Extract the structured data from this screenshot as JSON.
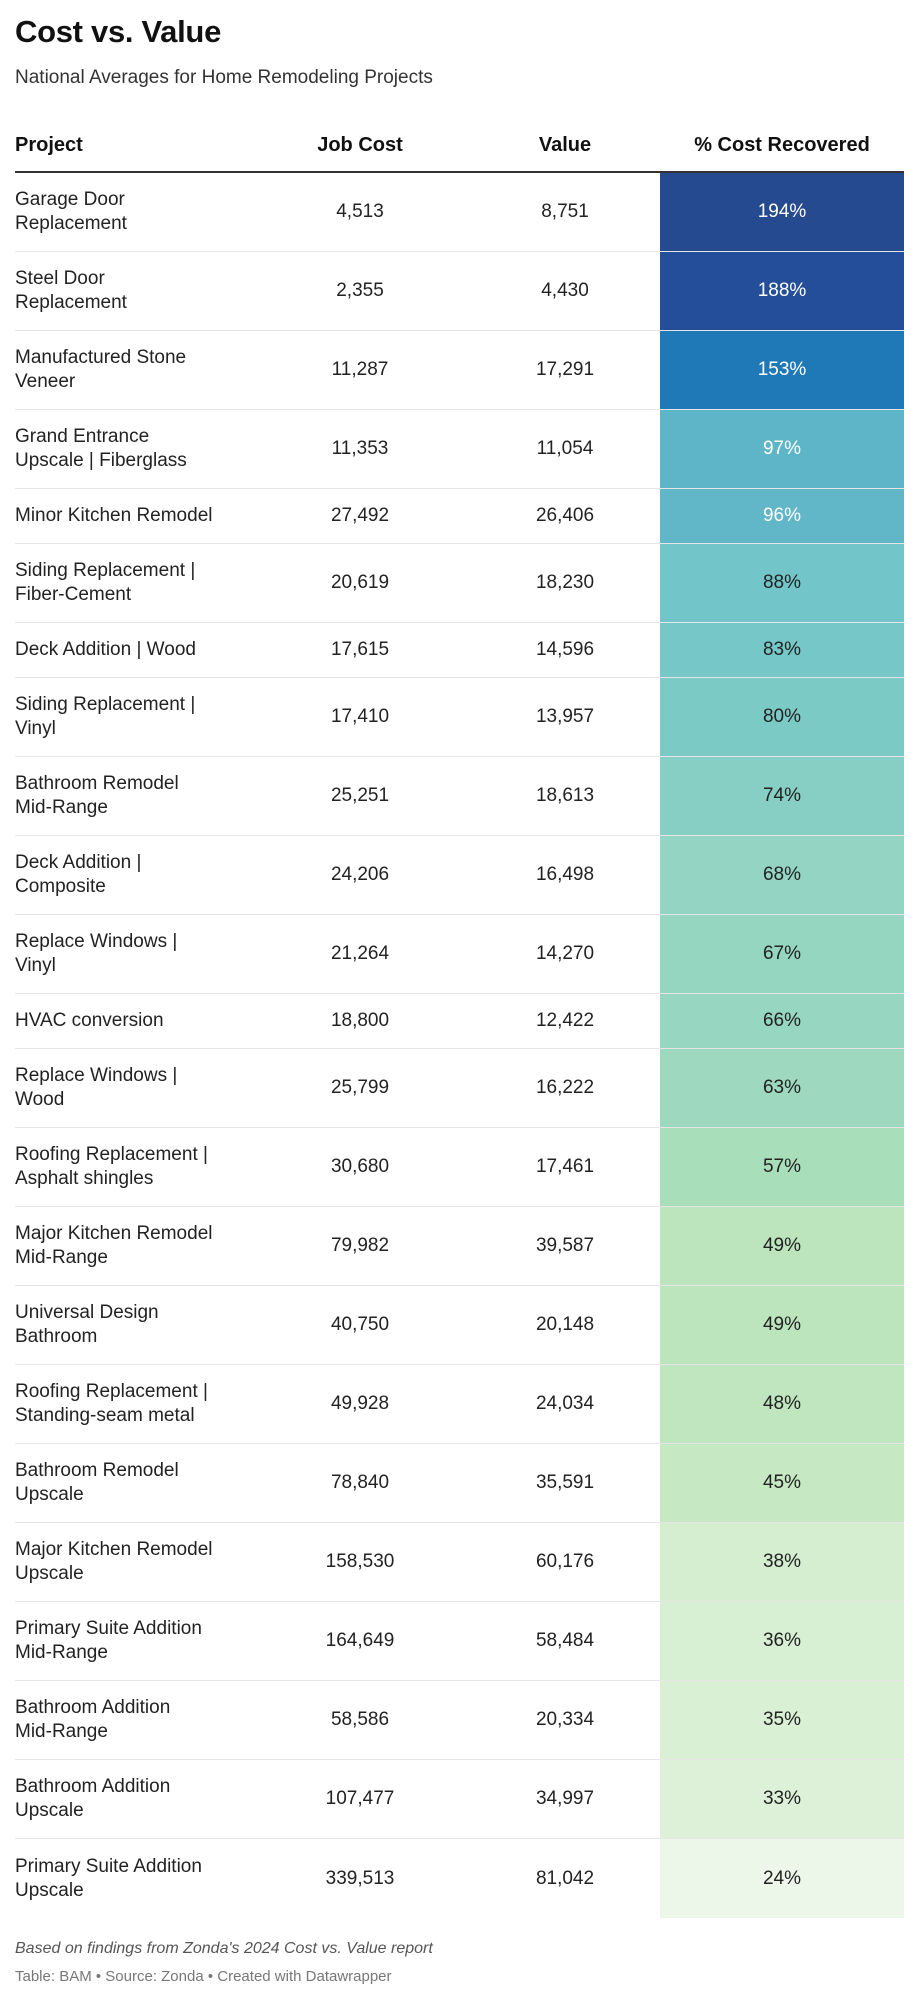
{
  "title": "Cost vs. Value",
  "subtitle": "National Averages for Home Remodeling Projects",
  "columns": {
    "project": "Project",
    "job_cost": "Job Cost",
    "value": "Value",
    "pct": "% Cost Recovered"
  },
  "footer": {
    "note": "Based on findings from Zonda's 2024 Cost vs. Value report",
    "credit": "Table: BAM • Source: Zonda • Created with Datawrapper"
  },
  "chart_data": {
    "type": "table",
    "title": "Cost vs. Value",
    "subtitle": "National Averages for Home Remodeling Projects",
    "columns": [
      "Project",
      "Job Cost",
      "Value",
      "% Cost Recovered"
    ],
    "rows": [
      {
        "project": "Garage Door\nReplacement",
        "job_cost": "4,513",
        "value": "8,751",
        "pct": "194%",
        "pct_num": 194,
        "color": "#264a8f",
        "text_color": "#ffffff"
      },
      {
        "project": "Steel Door\nReplacement",
        "job_cost": "2,355",
        "value": "4,430",
        "pct": "188%",
        "pct_num": 188,
        "color": "#244e99",
        "text_color": "#ffffff"
      },
      {
        "project": "Manufactured Stone\nVeneer",
        "job_cost": "11,287",
        "value": "17,291",
        "pct": "153%",
        "pct_num": 153,
        "color": "#2079b7",
        "text_color": "#ffffff"
      },
      {
        "project": "Grand Entrance\nUpscale | Fiberglass",
        "job_cost": "11,353",
        "value": "11,054",
        "pct": "97%",
        "pct_num": 97,
        "color": "#5fb5c8",
        "text_color": "#ffffff"
      },
      {
        "project": "Minor Kitchen Remodel",
        "job_cost": "27,492",
        "value": "26,406",
        "pct": "96%",
        "pct_num": 96,
        "color": "#61b6c8",
        "text_color": "#ffffff"
      },
      {
        "project": "Siding Replacement |\nFiber-Cement",
        "job_cost": "20,619",
        "value": "18,230",
        "pct": "88%",
        "pct_num": 88,
        "color": "#72c5c8",
        "text_color": "#222222"
      },
      {
        "project": "Deck Addition | Wood",
        "job_cost": "17,615",
        "value": "14,596",
        "pct": "83%",
        "pct_num": 83,
        "color": "#76c7c7",
        "text_color": "#222222"
      },
      {
        "project": "Siding Replacement |\nVinyl",
        "job_cost": "17,410",
        "value": "13,957",
        "pct": "80%",
        "pct_num": 80,
        "color": "#7bcac6",
        "text_color": "#222222"
      },
      {
        "project": "Bathroom Remodel\nMid-Range",
        "job_cost": "25,251",
        "value": "18,613",
        "pct": "74%",
        "pct_num": 74,
        "color": "#87cfc5",
        "text_color": "#222222"
      },
      {
        "project": "Deck Addition |\nComposite",
        "job_cost": "24,206",
        "value": "16,498",
        "pct": "68%",
        "pct_num": 68,
        "color": "#93d5c2",
        "text_color": "#222222"
      },
      {
        "project": "Replace Windows |\nVinyl",
        "job_cost": "21,264",
        "value": "14,270",
        "pct": "67%",
        "pct_num": 67,
        "color": "#95d6c1",
        "text_color": "#222222"
      },
      {
        "project": "HVAC conversion",
        "job_cost": "18,800",
        "value": "12,422",
        "pct": "66%",
        "pct_num": 66,
        "color": "#97d6c0",
        "text_color": "#222222"
      },
      {
        "project": "Replace Windows |\nWood",
        "job_cost": "25,799",
        "value": "16,222",
        "pct": "63%",
        "pct_num": 63,
        "color": "#9dd8bf",
        "text_color": "#222222"
      },
      {
        "project": "Roofing Replacement |\nAsphalt shingles",
        "job_cost": "30,680",
        "value": "17,461",
        "pct": "57%",
        "pct_num": 57,
        "color": "#a8deba",
        "text_color": "#222222"
      },
      {
        "project": "Major Kitchen Remodel\nMid-Range",
        "job_cost": "79,982",
        "value": "39,587",
        "pct": "49%",
        "pct_num": 49,
        "color": "#bce5bd",
        "text_color": "#222222"
      },
      {
        "project": "Universal Design\nBathroom",
        "job_cost": "40,750",
        "value": "20,148",
        "pct": "49%",
        "pct_num": 49,
        "color": "#bce5bd",
        "text_color": "#222222"
      },
      {
        "project": "Roofing Replacement |\nStanding-seam metal",
        "job_cost": "49,928",
        "value": "24,034",
        "pct": "48%",
        "pct_num": 48,
        "color": "#bfe6bf",
        "text_color": "#222222"
      },
      {
        "project": "Bathroom Remodel\nUpscale",
        "job_cost": "78,840",
        "value": "35,591",
        "pct": "45%",
        "pct_num": 45,
        "color": "#c6e9c3",
        "text_color": "#222222"
      },
      {
        "project": "Major Kitchen Remodel\nUpscale",
        "job_cost": "158,530",
        "value": "60,176",
        "pct": "38%",
        "pct_num": 38,
        "color": "#d4eecf",
        "text_color": "#222222"
      },
      {
        "project": "Primary Suite Addition\nMid-Range",
        "job_cost": "164,649",
        "value": "58,484",
        "pct": "36%",
        "pct_num": 36,
        "color": "#d7efd3",
        "text_color": "#222222"
      },
      {
        "project": "Bathroom Addition\nMid-Range",
        "job_cost": "58,586",
        "value": "20,334",
        "pct": "35%",
        "pct_num": 35,
        "color": "#d9f0d5",
        "text_color": "#222222"
      },
      {
        "project": "Bathroom Addition\nUpscale",
        "job_cost": "107,477",
        "value": "34,997",
        "pct": "33%",
        "pct_num": 33,
        "color": "#dcf1d8",
        "text_color": "#222222"
      },
      {
        "project": "Primary Suite Addition\nUpscale",
        "job_cost": "339,513",
        "value": "81,042",
        "pct": "24%",
        "pct_num": 24,
        "color": "#edf7e9",
        "text_color": "#222222"
      }
    ]
  }
}
